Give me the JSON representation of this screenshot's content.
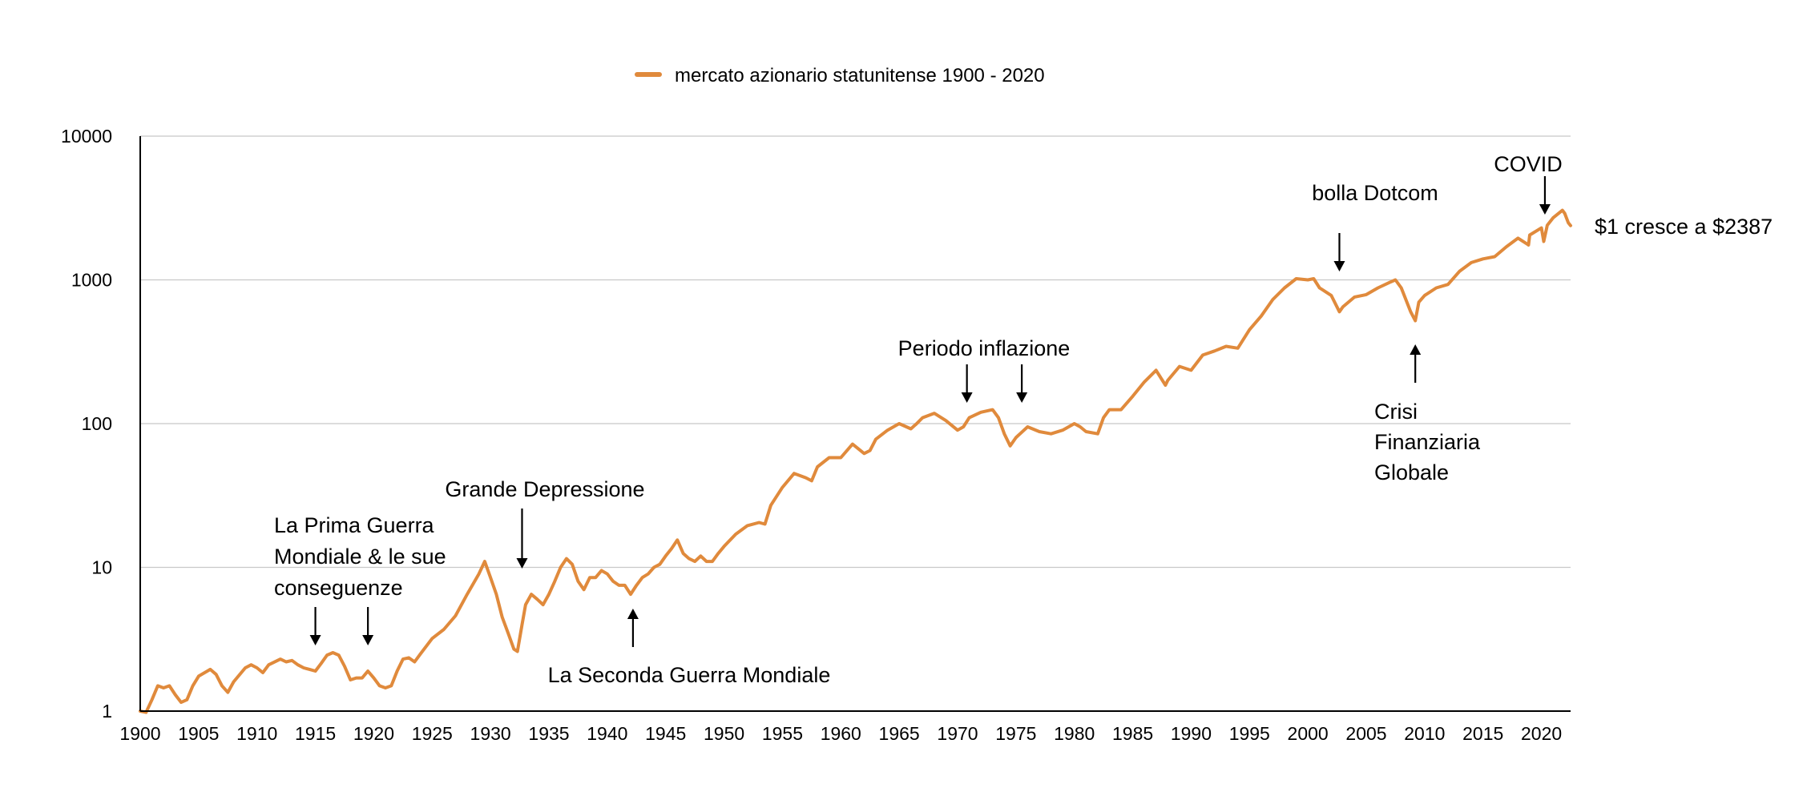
{
  "chart_data": {
    "type": "line",
    "title": "",
    "xlabel": "",
    "ylabel": "",
    "y_scale": "log",
    "ylim": [
      1,
      10000
    ],
    "xlim": [
      1900,
      2022.5
    ],
    "y_ticks": [
      1,
      10,
      100,
      1000,
      10000
    ],
    "y_tick_labels": [
      "1",
      "10",
      "100",
      "1000",
      "10000"
    ],
    "x_ticks": [
      1900,
      1905,
      1910,
      1915,
      1920,
      1925,
      1930,
      1935,
      1940,
      1945,
      1950,
      1955,
      1960,
      1965,
      1970,
      1975,
      1980,
      1985,
      1990,
      1995,
      2000,
      2005,
      2010,
      2015,
      2020
    ],
    "x_tick_labels": [
      "1900",
      "1905",
      "1910",
      "1915",
      "1920",
      "1925",
      "1930",
      "1935",
      "1940",
      "1945",
      "1950",
      "1955",
      "1960",
      "1965",
      "1970",
      "1975",
      "1980",
      "1985",
      "1990",
      "1995",
      "2000",
      "2005",
      "2010",
      "2015",
      "2020"
    ],
    "grid": "horizontal",
    "legend_position": "top-center",
    "series": [
      {
        "name": "mercato azionario statunitense 1900 - 2020",
        "color": "#e08a3c",
        "points": [
          [
            1900,
            1.0
          ],
          [
            1900.5,
            0.98
          ],
          [
            1901,
            1.2
          ],
          [
            1901.5,
            1.5
          ],
          [
            1902,
            1.45
          ],
          [
            1902.5,
            1.5
          ],
          [
            1903,
            1.3
          ],
          [
            1903.5,
            1.15
          ],
          [
            1904,
            1.2
          ],
          [
            1904.5,
            1.5
          ],
          [
            1905,
            1.75
          ],
          [
            1906,
            1.95
          ],
          [
            1906.5,
            1.8
          ],
          [
            1907,
            1.5
          ],
          [
            1907.5,
            1.35
          ],
          [
            1908,
            1.6
          ],
          [
            1909,
            2.0
          ],
          [
            1909.5,
            2.1
          ],
          [
            1910,
            2.0
          ],
          [
            1910.5,
            1.85
          ],
          [
            1911,
            2.1
          ],
          [
            1912,
            2.3
          ],
          [
            1912.5,
            2.2
          ],
          [
            1913,
            2.25
          ],
          [
            1913.5,
            2.1
          ],
          [
            1914,
            2.0
          ],
          [
            1914.5,
            1.95
          ],
          [
            1915,
            1.9
          ],
          [
            1915.5,
            2.15
          ],
          [
            1916,
            2.45
          ],
          [
            1916.5,
            2.55
          ],
          [
            1917,
            2.45
          ],
          [
            1917.5,
            2.05
          ],
          [
            1918,
            1.65
          ],
          [
            1918.5,
            1.7
          ],
          [
            1919,
            1.7
          ],
          [
            1919.5,
            1.9
          ],
          [
            1920,
            1.7
          ],
          [
            1920.5,
            1.5
          ],
          [
            1921,
            1.45
          ],
          [
            1921.5,
            1.5
          ],
          [
            1922,
            1.9
          ],
          [
            1922.5,
            2.3
          ],
          [
            1923,
            2.35
          ],
          [
            1923.5,
            2.2
          ],
          [
            1924,
            2.5
          ],
          [
            1925,
            3.2
          ],
          [
            1926,
            3.7
          ],
          [
            1927,
            4.6
          ],
          [
            1928,
            6.5
          ],
          [
            1929,
            9.0
          ],
          [
            1929.5,
            11.0
          ],
          [
            1930,
            8.5
          ],
          [
            1930.5,
            6.5
          ],
          [
            1931,
            4.5
          ],
          [
            1931.5,
            3.5
          ],
          [
            1932,
            2.7
          ],
          [
            1932.3,
            2.6
          ],
          [
            1932.7,
            4.0
          ],
          [
            1933,
            5.5
          ],
          [
            1933.5,
            6.5
          ],
          [
            1934,
            6.0
          ],
          [
            1934.5,
            5.5
          ],
          [
            1935,
            6.5
          ],
          [
            1935.5,
            8.0
          ],
          [
            1936,
            10.0
          ],
          [
            1936.5,
            11.5
          ],
          [
            1937,
            10.5
          ],
          [
            1937.5,
            8.0
          ],
          [
            1938,
            7.0
          ],
          [
            1938.5,
            8.5
          ],
          [
            1939,
            8.5
          ],
          [
            1939.5,
            9.5
          ],
          [
            1940,
            9.0
          ],
          [
            1940.5,
            8.0
          ],
          [
            1941,
            7.5
          ],
          [
            1941.5,
            7.5
          ],
          [
            1942,
            6.5
          ],
          [
            1942.5,
            7.5
          ],
          [
            1943,
            8.5
          ],
          [
            1943.5,
            9.0
          ],
          [
            1944,
            10.0
          ],
          [
            1944.5,
            10.5
          ],
          [
            1945,
            12.0
          ],
          [
            1945.5,
            13.5
          ],
          [
            1946,
            15.5
          ],
          [
            1946.5,
            12.5
          ],
          [
            1947,
            11.5
          ],
          [
            1947.5,
            11.0
          ],
          [
            1948,
            12.0
          ],
          [
            1948.5,
            11.0
          ],
          [
            1949,
            11.0
          ],
          [
            1949.5,
            12.5
          ],
          [
            1950,
            14.0
          ],
          [
            1951,
            17.0
          ],
          [
            1952,
            19.5
          ],
          [
            1953,
            20.5
          ],
          [
            1953.5,
            20.0
          ],
          [
            1954,
            27.0
          ],
          [
            1955,
            36.0
          ],
          [
            1956,
            45.0
          ],
          [
            1957,
            42.0
          ],
          [
            1957.5,
            40.0
          ],
          [
            1958,
            50.0
          ],
          [
            1959,
            58.0
          ],
          [
            1960,
            58.0
          ],
          [
            1961,
            72.0
          ],
          [
            1962,
            62.0
          ],
          [
            1962.5,
            65.0
          ],
          [
            1963,
            78.0
          ],
          [
            1964,
            90.0
          ],
          [
            1965,
            100.0
          ],
          [
            1966,
            92.0
          ],
          [
            1966.5,
            100.0
          ],
          [
            1967,
            110.0
          ],
          [
            1968,
            118.0
          ],
          [
            1969,
            105.0
          ],
          [
            1970,
            90.0
          ],
          [
            1970.5,
            95.0
          ],
          [
            1971,
            110.0
          ],
          [
            1972,
            120.0
          ],
          [
            1973,
            125.0
          ],
          [
            1973.5,
            110.0
          ],
          [
            1974,
            85.0
          ],
          [
            1974.5,
            70.0
          ],
          [
            1975,
            80.0
          ],
          [
            1976,
            95.0
          ],
          [
            1977,
            88.0
          ],
          [
            1978,
            85.0
          ],
          [
            1979,
            90.0
          ],
          [
            1980,
            100.0
          ],
          [
            1980.5,
            95.0
          ],
          [
            1981,
            88.0
          ],
          [
            1982,
            85.0
          ],
          [
            1982.5,
            110.0
          ],
          [
            1983,
            125.0
          ],
          [
            1984,
            125.0
          ],
          [
            1985,
            155.0
          ],
          [
            1986,
            195.0
          ],
          [
            1987,
            235.0
          ],
          [
            1987.8,
            185.0
          ],
          [
            1988,
            200.0
          ],
          [
            1989,
            250.0
          ],
          [
            1990,
            235.0
          ],
          [
            1991,
            300.0
          ],
          [
            1992,
            320.0
          ],
          [
            1993,
            345.0
          ],
          [
            1994,
            335.0
          ],
          [
            1995,
            450.0
          ],
          [
            1996,
            560.0
          ],
          [
            1997,
            730.0
          ],
          [
            1998,
            880.0
          ],
          [
            1999,
            1020.0
          ],
          [
            2000,
            1000.0
          ],
          [
            2000.5,
            1020.0
          ],
          [
            2001,
            880.0
          ],
          [
            2002,
            780.0
          ],
          [
            2002.7,
            600.0
          ],
          [
            2003,
            650.0
          ],
          [
            2004,
            760.0
          ],
          [
            2005,
            790.0
          ],
          [
            2006,
            880.0
          ],
          [
            2007,
            960.0
          ],
          [
            2007.5,
            1000.0
          ],
          [
            2008,
            880.0
          ],
          [
            2008.8,
            600.0
          ],
          [
            2009.2,
            520.0
          ],
          [
            2009.5,
            700.0
          ],
          [
            2010,
            780.0
          ],
          [
            2011,
            880.0
          ],
          [
            2012,
            930.0
          ],
          [
            2013,
            1150.0
          ],
          [
            2014,
            1320.0
          ],
          [
            2015,
            1400.0
          ],
          [
            2016,
            1450.0
          ],
          [
            2017,
            1700.0
          ],
          [
            2018,
            1950.0
          ],
          [
            2018.9,
            1750.0
          ],
          [
            2019,
            2050.0
          ],
          [
            2020,
            2300.0
          ],
          [
            2020.2,
            1850.0
          ],
          [
            2020.5,
            2400.0
          ],
          [
            2021,
            2700.0
          ],
          [
            2021.8,
            3050.0
          ],
          [
            2022,
            2900.0
          ],
          [
            2022.3,
            2500.0
          ],
          [
            2022.5,
            2387.0
          ]
        ]
      }
    ],
    "annotations": [
      {
        "lines": [
          "La Prima Guerra",
          "Mondiale & le sue",
          "conseguenze"
        ],
        "arrows": [
          {
            "year": 1915,
            "direction": "down"
          },
          {
            "year": 1919.5,
            "direction": "down"
          }
        ]
      },
      {
        "lines": [
          "Grande Depressione"
        ],
        "arrows": [
          {
            "year": 1932.7,
            "direction": "down"
          }
        ]
      },
      {
        "lines": [
          "La Seconda Guerra Mondiale"
        ],
        "arrows": [
          {
            "year": 1942.2,
            "direction": "up"
          }
        ]
      },
      {
        "lines": [
          "Periodo inflazione"
        ],
        "arrows": [
          {
            "year": 1970.8,
            "direction": "down"
          },
          {
            "year": 1975.5,
            "direction": "down"
          }
        ]
      },
      {
        "lines": [
          "bolla Dotcom"
        ],
        "arrows": [
          {
            "year": 2002.7,
            "direction": "down"
          }
        ]
      },
      {
        "lines": [
          "Crisi",
          "Finanziaria",
          "Globale"
        ],
        "arrows": [
          {
            "year": 2009.2,
            "direction": "up"
          }
        ]
      },
      {
        "lines": [
          "COVID"
        ],
        "arrows": [
          {
            "year": 2020.3,
            "direction": "down"
          }
        ]
      },
      {
        "lines": [
          "$1 cresce a $2387"
        ],
        "arrows": []
      }
    ]
  }
}
